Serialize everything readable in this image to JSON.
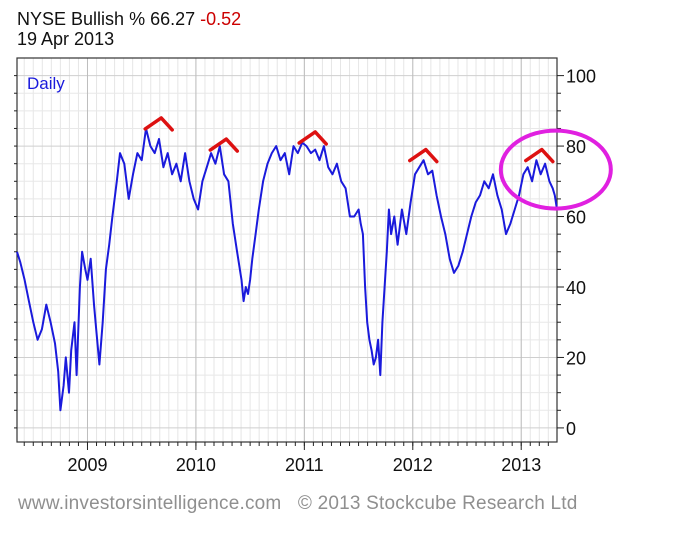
{
  "header": {
    "symbol": "NYSE Bullish",
    "pct_sign": "%",
    "value": "66.27",
    "change": "-0.52",
    "date": "19 Apr 2013"
  },
  "footer": {
    "source": "www.investorsintelligence.com",
    "copyright": "© 2013 Stockcube Research Ltd"
  },
  "chart_data": {
    "type": "line",
    "label": "Daily",
    "xlim": [
      2008.35,
      2013.33
    ],
    "ylim": [
      -4,
      105
    ],
    "x_ticks": [
      2009,
      2010,
      2011,
      2012,
      2013
    ],
    "x_tick_labels": [
      "2009",
      "2010",
      "2011",
      "2012",
      "2013"
    ],
    "y_ticks": [
      0,
      20,
      40,
      60,
      80,
      100
    ],
    "y_tick_labels": [
      "0",
      "20",
      "40",
      "60",
      "80",
      "100"
    ],
    "y_axis_side": "right",
    "grid": true,
    "line_color": "#1a1adc",
    "series": [
      {
        "x": [
          2008.35,
          2008.38,
          2008.42,
          2008.46,
          2008.5,
          2008.54,
          2008.58,
          2008.62,
          2008.66,
          2008.7,
          2008.73,
          2008.75,
          2008.78,
          2008.8,
          2008.83,
          2008.85,
          2008.88,
          2008.9,
          2008.93,
          2008.95,
          2008.98,
          2009.0,
          2009.03,
          2009.06,
          2009.08,
          2009.11,
          2009.14,
          2009.17,
          2009.2,
          2009.23,
          2009.27,
          2009.3,
          2009.34,
          2009.38,
          2009.42,
          2009.46,
          2009.5,
          2009.54,
          2009.58,
          2009.62,
          2009.66,
          2009.7,
          2009.74,
          2009.78,
          2009.82,
          2009.86,
          2009.9,
          2009.94,
          2009.98,
          2010.02,
          2010.06,
          2010.1,
          2010.14,
          2010.18,
          2010.22,
          2010.26,
          2010.3,
          2010.34,
          2010.38,
          2010.42,
          2010.44,
          2010.46,
          2010.48,
          2010.5,
          2010.52,
          2010.55,
          2010.58,
          2010.62,
          2010.66,
          2010.7,
          2010.74,
          2010.78,
          2010.82,
          2010.86,
          2010.9,
          2010.94,
          2010.98,
          2011.02,
          2011.06,
          2011.1,
          2011.14,
          2011.18,
          2011.22,
          2011.26,
          2011.3,
          2011.34,
          2011.38,
          2011.42,
          2011.46,
          2011.5,
          2011.52,
          2011.54,
          2011.56,
          2011.58,
          2011.6,
          2011.62,
          2011.64,
          2011.66,
          2011.68,
          2011.7,
          2011.72,
          2011.74,
          2011.76,
          2011.78,
          2011.8,
          2011.83,
          2011.86,
          2011.9,
          2011.94,
          2011.98,
          2012.02,
          2012.06,
          2012.1,
          2012.14,
          2012.18,
          2012.22,
          2012.26,
          2012.3,
          2012.34,
          2012.38,
          2012.42,
          2012.46,
          2012.5,
          2012.54,
          2012.58,
          2012.62,
          2012.66,
          2012.7,
          2012.74,
          2012.78,
          2012.82,
          2012.86,
          2012.9,
          2012.94,
          2012.98,
          2013.02,
          2013.06,
          2013.1,
          2013.14,
          2013.18,
          2013.22,
          2013.26,
          2013.29,
          2013.31,
          2013.33
        ],
        "y": [
          50,
          47,
          42,
          36,
          30,
          25,
          28,
          35,
          30,
          24,
          16,
          5,
          12,
          20,
          10,
          22,
          30,
          15,
          40,
          50,
          45,
          42,
          48,
          35,
          28,
          18,
          30,
          45,
          52,
          60,
          70,
          78,
          75,
          65,
          72,
          78,
          76,
          85,
          80,
          78,
          82,
          74,
          78,
          72,
          75,
          70,
          78,
          70,
          65,
          62,
          70,
          74,
          78,
          75,
          80,
          72,
          70,
          58,
          50,
          42,
          36,
          40,
          38,
          42,
          48,
          55,
          62,
          70,
          75,
          78,
          80,
          76,
          78,
          72,
          80,
          78,
          81,
          80,
          78,
          79,
          76,
          80,
          74,
          72,
          75,
          70,
          68,
          60,
          60,
          62,
          58,
          55,
          40,
          30,
          25,
          22,
          18,
          20,
          25,
          15,
          30,
          40,
          50,
          62,
          55,
          60,
          52,
          62,
          55,
          64,
          72,
          74,
          76,
          72,
          73,
          66,
          60,
          55,
          48,
          44,
          46,
          50,
          55,
          60,
          64,
          66,
          70,
          68,
          72,
          66,
          62,
          55,
          58,
          62,
          66,
          72,
          74,
          70,
          76,
          72,
          75,
          70,
          68,
          66,
          62
        ]
      }
    ],
    "annotations": {
      "peak_marker_color": "#dd1111",
      "peak_x": [
        2009.68,
        2010.28,
        2011.1,
        2012.12,
        2013.19
      ],
      "peak_y": [
        88,
        82,
        84,
        79,
        79
      ],
      "highlight_color": "#e020e0"
    }
  }
}
